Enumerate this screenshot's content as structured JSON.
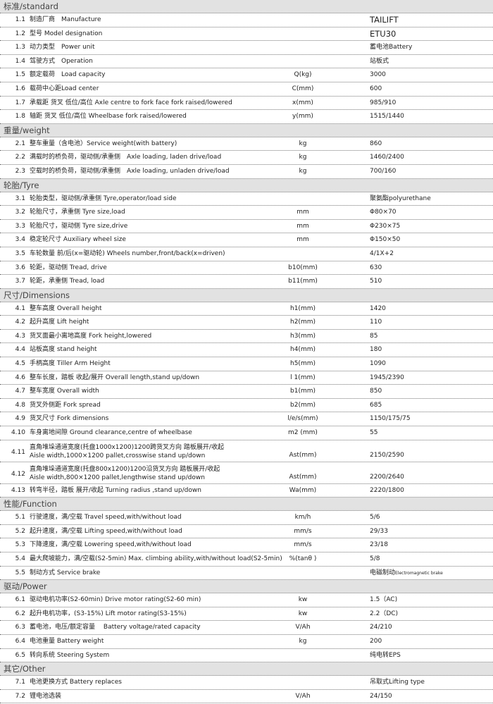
{
  "sections": [
    {
      "title": "标准/standard",
      "rows": [
        {
          "num": "1.1",
          "label": "制造厂商　Manufacture",
          "unit": "",
          "value": "TAILIFT",
          "big": true
        },
        {
          "num": "1.2",
          "label": "型号 Model designation",
          "unit": "",
          "value": "ETU30",
          "big": true
        },
        {
          "num": "1.3",
          "label": "动力类型　Power unit",
          "unit": "",
          "value": "蓄电池Battery"
        },
        {
          "num": "1.4",
          "label": "驾驶方式　Operation",
          "unit": "",
          "value": "站板式"
        },
        {
          "num": "1.5",
          "label": "额定载荷　Load capacity",
          "unit": "Q(kg)",
          "value": "3000"
        },
        {
          "num": "1.6",
          "label": "载荷中心距Load center",
          "unit": "C(mm)",
          "value": "600"
        },
        {
          "num": "1.7",
          "label": "承载距 货叉 低位/高位 Axle centre to fork face fork raised/lowered",
          "unit": "x(mm)",
          "value": "985/910"
        },
        {
          "num": "1.8",
          "label": "轴距 货叉 低位/高位 Wheelbase fork raised/lowered",
          "unit": "y(mm)",
          "value": "1515/1440"
        }
      ]
    },
    {
      "title": "重量/weight",
      "rows": [
        {
          "num": "2.1",
          "label": "整车重量（含电池）Service weight(with battery)",
          "unit": "kg",
          "value": "860"
        },
        {
          "num": "2.2",
          "label": "满载时的桥负荷，驱动侧/承重侧　Axle loading, laden drive/load",
          "unit": "kg",
          "value": "1460/2400"
        },
        {
          "num": "2.3",
          "label": "空载时的桥负荷，驱动侧/承重侧　Axle loading, unladen drive/load",
          "unit": "kg",
          "value": "700/160"
        }
      ]
    },
    {
      "title": "轮胎/Tyre",
      "rows": [
        {
          "num": "3.1",
          "label": "轮胎类型，驱动侧/承重侧 Tyre,operator/load side",
          "unit": "",
          "value": "聚氨酯polyurethane"
        },
        {
          "num": "3.2",
          "label": "轮胎尺寸，承重侧 Tyre size,load",
          "unit": "mm",
          "value": "Φ80×70"
        },
        {
          "num": "3.3",
          "label": "轮胎尺寸，驱动侧 Tyre size,drive",
          "unit": "mm",
          "value": "Φ230×75"
        },
        {
          "num": "3.4",
          "label": "稳定轮尺寸 Auxiliary wheel size",
          "unit": "mm",
          "value": "Φ150×50"
        },
        {
          "num": "3.5",
          "label": "车轮数量 前/后(x=驱动轮) Wheels number,front/back(x=driven)",
          "unit": "",
          "value": "4/1X+2"
        },
        {
          "num": "3.6",
          "label": "轮距，驱动侧 Tread, drive",
          "unit": "b10(mm)",
          "value": "630"
        },
        {
          "num": "3.7",
          "label": "轮距，承重侧 Tread, load",
          "unit": "b11(mm)",
          "value": "510"
        }
      ]
    },
    {
      "title": "尺寸/Dimensions",
      "rows": [
        {
          "num": "4.1",
          "label": "整车高度 Overall height",
          "unit": "h1(mm)",
          "value": "1420"
        },
        {
          "num": "4.2",
          "label": "起升高度 Lift height",
          "unit": "h2(mm)",
          "value": "110"
        },
        {
          "num": "4.3",
          "label": "货叉面最小离地高度 Fork height,lowered",
          "unit": "h3(mm)",
          "value": "85"
        },
        {
          "num": "4.4",
          "label": "站板高度 stand height",
          "unit": "h4(mm)",
          "value": "180"
        },
        {
          "num": "4.5",
          "label": "手柄高度 Tiller Arm Height",
          "unit": "h5(mm)",
          "value": "1090"
        },
        {
          "num": "4.6",
          "label": "整车长度，踏板 收起/展开 Overall length,stand up/down",
          "unit": "l 1(mm)",
          "value": "1945/2390"
        },
        {
          "num": "4.7",
          "label": "整车宽度 Overall width",
          "unit": "b1(mm)",
          "value": "850"
        },
        {
          "num": "4.8",
          "label": "货叉外侧距 Fork spread",
          "unit": "b2(mm)",
          "value": "685"
        },
        {
          "num": "4.9",
          "label": "货叉尺寸 Fork dimensions",
          "unit": "l/e/s(mm)",
          "value": "1150/175/75"
        },
        {
          "num": "4.10",
          "label": "车身离地间隙 Ground clearance,centre of  wheelbase",
          "unit": "m2 (mm)",
          "value": "55"
        },
        {
          "num": "4.11",
          "label": "直角堆垛通道宽度(托盘1000x1200)1200跨货叉方向 踏板展开/收起",
          "label2": "Aisle width,1000×1200 pallet,crosswise stand up/down",
          "unit": "Ast(mm)",
          "value": "2150/2590"
        },
        {
          "num": "4.12",
          "label": "直角堆垛通道宽度(托盘800x1200)1200沿货叉方向 踏板展开/收起",
          "label2": "Aisle width,800×1200 pallet,lengthwise stand up/down",
          "unit": "Ast(mm)",
          "value": "2200/2640"
        },
        {
          "num": "4.13",
          "label": "转弯半径，踏板 展开/收起  Turning radius ,stand up/down",
          "unit": "Wa(mm)",
          "value": "2220/1800"
        }
      ]
    },
    {
      "title": "性能/Function",
      "rows": [
        {
          "num": "5.1",
          "label": "行驶速度，满/空载 Travel speed,with/without load",
          "unit": "km/h",
          "value": "5/6"
        },
        {
          "num": "5.2",
          "label": "起升速度，满/空载 Lifting speed,with/without load",
          "unit": "mm/s",
          "value": "29/33"
        },
        {
          "num": "5.3",
          "label": "下降速度，满/空载 Lowering speed,with/without load",
          "unit": "mm/s",
          "value": "23/18"
        },
        {
          "num": "5.4",
          "label": "最大爬坡能力，满/空载(S2-5min) Max. climbing ability,with/without load(S2-5min)",
          "unit": "%(tanθ )",
          "value": "5/8"
        },
        {
          "num": "5.5",
          "label": "制动方式 Service brake",
          "unit": "",
          "value": "电磁制动",
          "value_suffix": "Electromagnetic brake"
        }
      ]
    },
    {
      "title": "驱动/Power",
      "rows": [
        {
          "num": "6.1",
          "label": "驱动电机功率(S2-60min)  Drive motor rating(S2-60 min)",
          "unit": "kw",
          "value": "1.5（AC)"
        },
        {
          "num": "6.2",
          "label": "起升电机功率，(S3-15%) Lift motor rating(S3-15%)",
          "unit": "kw",
          "value": "2.2（DC)"
        },
        {
          "num": "6.3",
          "label": "蓄电池，电压/额定容量　 Battery voltage/rated capacity",
          "unit": "V/Ah",
          "value": "24/210"
        },
        {
          "num": "6.4",
          "label": "电池重量 Battery weight",
          "unit": "kg",
          "value": "200"
        },
        {
          "num": "6.5",
          "label": "转向系统 Steering System",
          "unit": "",
          "value": "纯电转EPS"
        }
      ]
    },
    {
      "title": "其它/Other",
      "rows": [
        {
          "num": "7.1",
          "label": "电池更换方式  Battery replaces",
          "unit": "",
          "value": "吊取式Lifting type"
        },
        {
          "num": "7.2",
          "label": "锂电池选装",
          "unit": "V/Ah",
          "value": "24/150"
        }
      ]
    }
  ]
}
